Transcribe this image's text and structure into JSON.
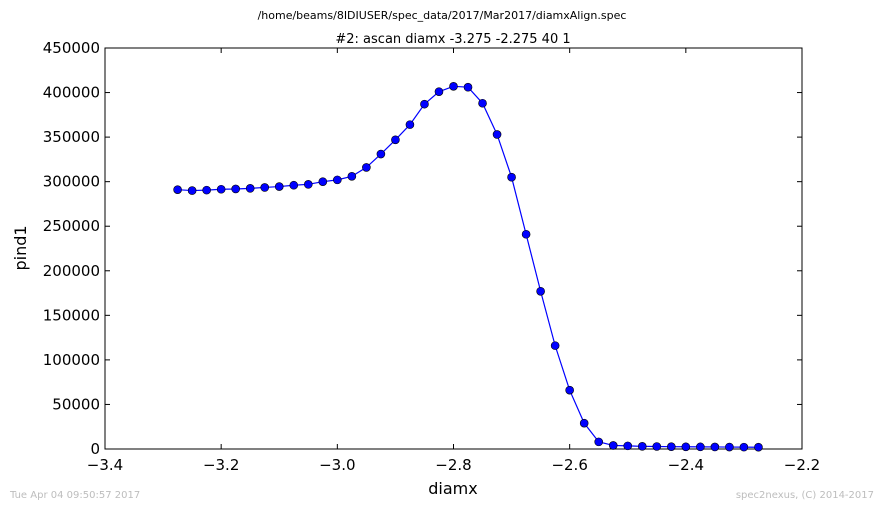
{
  "header": {
    "file_path": "/home/beams/8IDIUSER/spec_data/2017/Mar2017/diamxAlign.spec"
  },
  "footer": {
    "timestamp": "Tue Apr 04 09:50:57 2017",
    "credit": "spec2nexus, (C) 2014-2017"
  },
  "chart_data": {
    "type": "line",
    "title": "#2: ascan  diamx -3.275 -2.275  40 1",
    "xlabel": "diamx",
    "ylabel": "pind1",
    "xlim": [
      -3.4,
      -2.2
    ],
    "ylim": [
      0,
      450000
    ],
    "xticks": [
      -3.4,
      -3.2,
      -3.0,
      -2.8,
      -2.6,
      -2.4,
      -2.2
    ],
    "xtick_labels": [
      "−3.4",
      "−3.2",
      "−3.0",
      "−2.8",
      "−2.6",
      "−2.4",
      "−2.2"
    ],
    "yticks": [
      0,
      50000,
      100000,
      150000,
      200000,
      250000,
      300000,
      350000,
      400000,
      450000
    ],
    "ytick_labels": [
      "0",
      "50000",
      "100000",
      "150000",
      "200000",
      "250000",
      "300000",
      "350000",
      "400000",
      "450000"
    ],
    "grid": false,
    "line_color": "#0000ff",
    "marker": "circle",
    "series": [
      {
        "x": [
          -3.275,
          -3.25,
          -3.225,
          -3.2,
          -3.175,
          -3.15,
          -3.125,
          -3.1,
          -3.075,
          -3.05,
          -3.025,
          -3.0,
          -2.975,
          -2.95,
          -2.925,
          -2.9,
          -2.875,
          -2.85,
          -2.825,
          -2.8,
          -2.775,
          -2.75,
          -2.725,
          -2.7,
          -2.675,
          -2.65,
          -2.625,
          -2.6,
          -2.575,
          -2.55,
          -2.525,
          -2.5,
          -2.475,
          -2.45,
          -2.425,
          -2.4,
          -2.375,
          -2.35,
          -2.325,
          -2.3,
          -2.275
        ],
        "y": [
          291000,
          290000,
          290500,
          291500,
          291800,
          292500,
          293500,
          294500,
          296000,
          297000,
          300000,
          302000,
          306000,
          316000,
          331000,
          347000,
          364000,
          387000,
          401000,
          407000,
          406000,
          388000,
          353000,
          305000,
          241000,
          177000,
          116000,
          66000,
          29000,
          8000,
          4000,
          3500,
          3000,
          2800,
          2600,
          2500,
          2400,
          2300,
          2200,
          2100,
          2000
        ]
      }
    ]
  }
}
